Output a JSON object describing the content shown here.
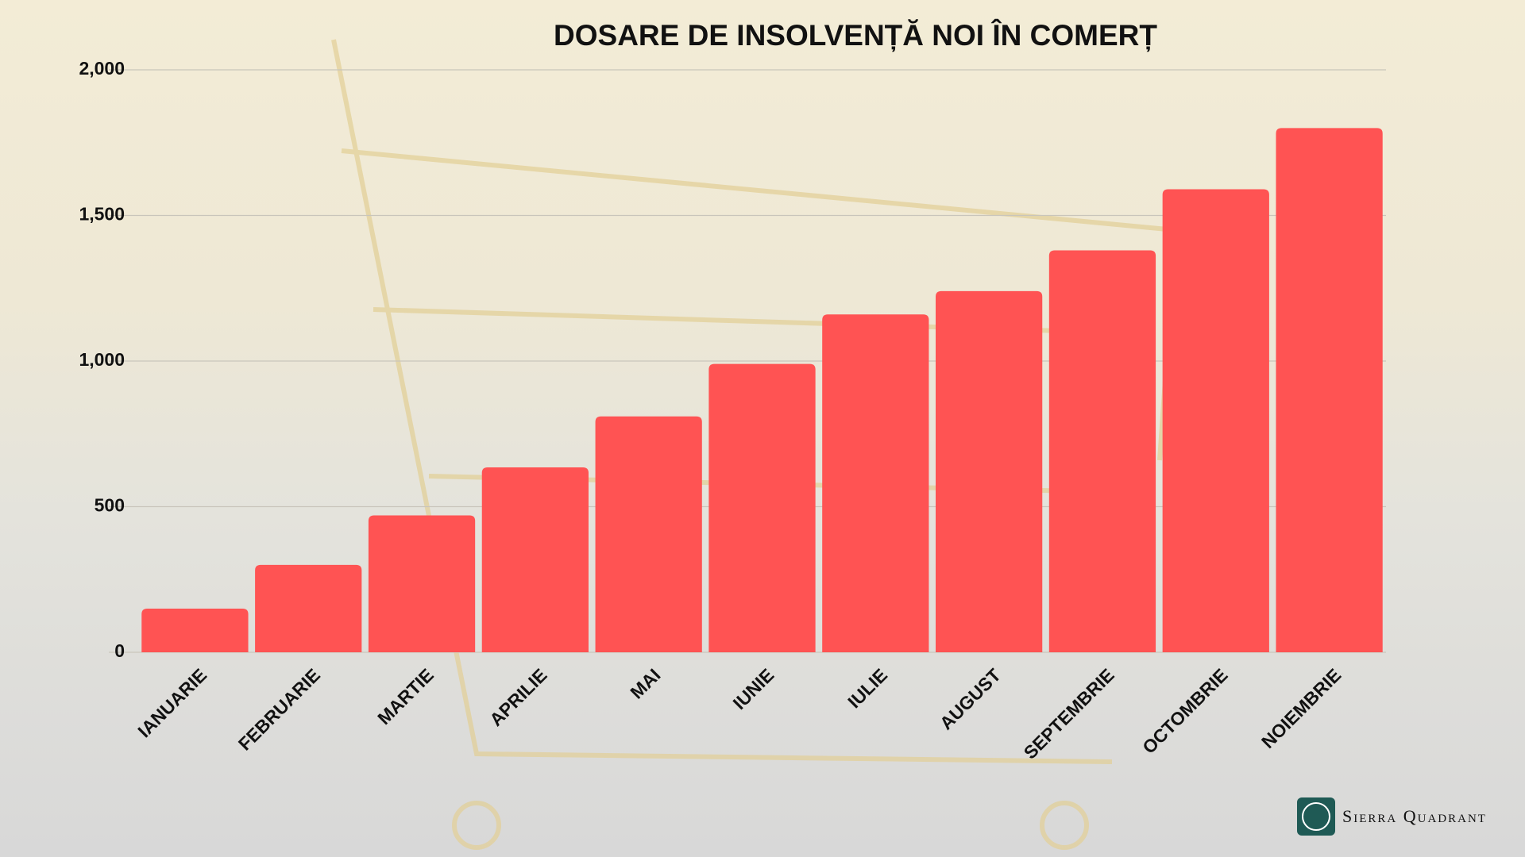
{
  "chart_data": {
    "type": "bar",
    "title": "DOSARE DE INSOLVENȚĂ NOI ÎN COMERȚ",
    "categories": [
      "IANUARIE",
      "FEBRUARIE",
      "MARTIE",
      "APRILIE",
      "MAI",
      "IUNIE",
      "IULIE",
      "AUGUST",
      "SEPTEMBRIE",
      "OCTOMBRIE",
      "NOIEMBRIE"
    ],
    "values": [
      150,
      300,
      470,
      635,
      810,
      990,
      1160,
      1240,
      1380,
      1590,
      1800
    ],
    "color": "#ff5353",
    "ylim": [
      0,
      2000
    ],
    "yticks": [
      0,
      500,
      {
        "value": 1000,
        "label": "1,000"
      },
      {
        "value": 1500,
        "label": "1,500"
      },
      {
        "value": 2000,
        "label": "2,000"
      }
    ],
    "grid": true
  },
  "brand": "Sierra Quadrant"
}
